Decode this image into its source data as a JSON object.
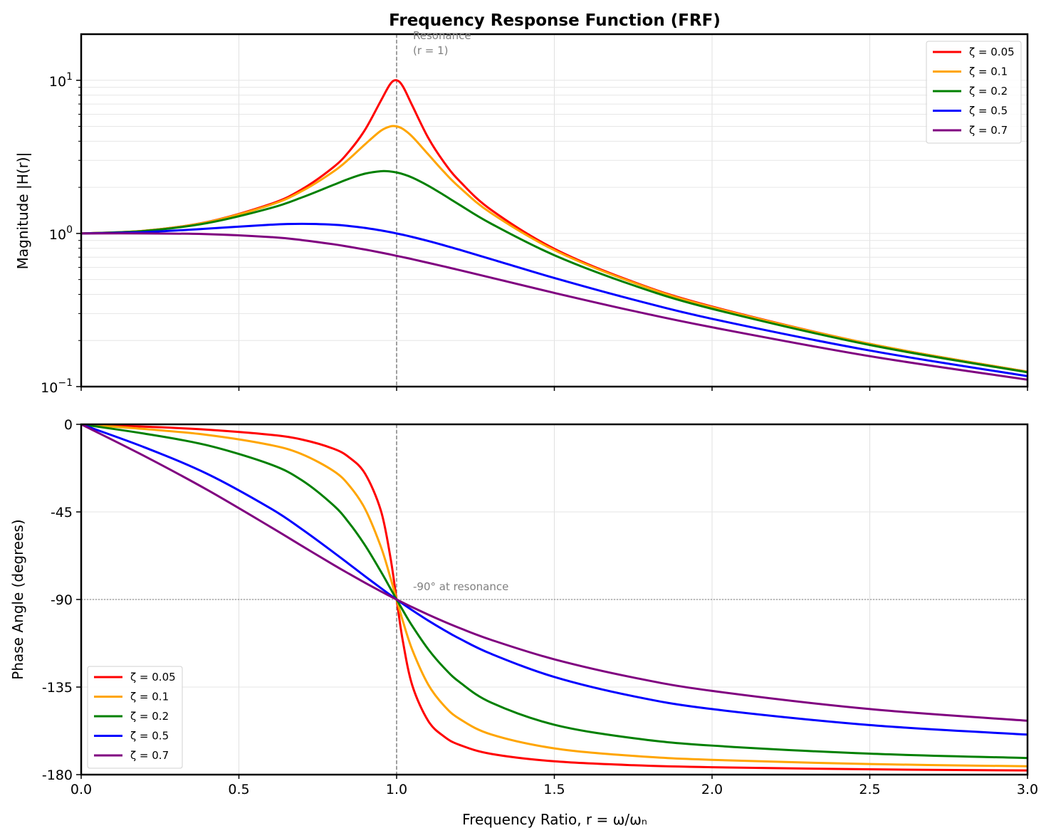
{
  "chart_data": [
    {
      "type": "line",
      "title": "Frequency Response Function (FRF)",
      "xlabel": "",
      "ylabel": "Magnitude |H(r)|",
      "xlim": [
        0,
        3
      ],
      "ylim": [
        0.1,
        20
      ],
      "yscale": "log",
      "grid": true,
      "legend": "top-right",
      "xticks": [
        "0.0",
        "0.5",
        "1.0",
        "1.5",
        "2.0",
        "2.5",
        "3.0"
      ],
      "yticks": [
        {
          "base": "10",
          "exp": "−1",
          "value": 0.1
        },
        {
          "base": "10",
          "exp": "0",
          "value": 1
        },
        {
          "base": "10",
          "exp": "1",
          "value": 10
        }
      ],
      "annotation": {
        "line1": "Resonance",
        "line2": "(r = 1)",
        "x": 1
      },
      "x": [
        0,
        0.2,
        0.4,
        0.6,
        0.7,
        0.8,
        0.85,
        0.9,
        0.95,
        0.98,
        1.0,
        1.02,
        1.05,
        1.1,
        1.15,
        1.2,
        1.3,
        1.5,
        1.75,
        2.0,
        2.5,
        3.0
      ],
      "series": [
        {
          "name": "ζ = 0.05",
          "color": "#ff0000",
          "values": [
            1,
            1.041,
            1.189,
            1.556,
            1.943,
            2.712,
            3.446,
            4.757,
            7.347,
            9.461,
            10.0,
            9.115,
            6.815,
            4.218,
            2.921,
            2.193,
            1.424,
            0.794,
            0.483,
            0.333,
            0.19,
            0.125
          ]
        },
        {
          "name": "ζ = 0.1",
          "color": "#ffa500",
          "values": [
            1,
            1.041,
            1.185,
            1.536,
            1.891,
            2.538,
            3.073,
            3.821,
            4.683,
            5.0,
            5.0,
            4.808,
            4.279,
            3.288,
            2.525,
            1.995,
            1.356,
            0.778,
            0.478,
            0.33,
            0.19,
            0.125
          ]
        },
        {
          "name": "ζ = 0.2",
          "color": "#008000",
          "values": [
            1,
            1.038,
            1.169,
            1.463,
            1.719,
            2.076,
            2.279,
            2.457,
            2.549,
            2.538,
            2.5,
            2.439,
            2.313,
            2.051,
            1.78,
            1.536,
            1.157,
            0.721,
            0.459,
            0.322,
            0.187,
            0.124
          ]
        },
        {
          "name": "ζ = 0.5",
          "color": "#0000ff",
          "values": [
            1,
            1.02,
            1.075,
            1.14,
            1.155,
            1.14,
            1.118,
            1.087,
            1.047,
            1.02,
            1.0,
            0.98,
            0.948,
            0.893,
            0.837,
            0.782,
            0.679,
            0.512,
            0.37,
            0.277,
            0.172,
            0.117
          ]
        },
        {
          "name": "ζ = 0.7",
          "color": "#800080",
          "values": [
            1,
            1.0,
            0.99,
            0.947,
            0.905,
            0.85,
            0.818,
            0.785,
            0.75,
            0.729,
            0.714,
            0.7,
            0.679,
            0.643,
            0.609,
            0.576,
            0.514,
            0.409,
            0.312,
            0.244,
            0.158,
            0.111
          ]
        }
      ]
    },
    {
      "type": "line",
      "title": "",
      "xlabel": "Frequency Ratio, r = ω/ωₙ",
      "ylabel": "Phase Angle (degrees)",
      "xlim": [
        0,
        3
      ],
      "ylim": [
        -180,
        0
      ],
      "grid": true,
      "legend": "bottom-left",
      "xticks": [
        "0.0",
        "0.5",
        "1.0",
        "1.5",
        "2.0",
        "2.5",
        "3.0"
      ],
      "yticks": [
        "0",
        "-45",
        "-90",
        "-135",
        "-180"
      ],
      "annotation": {
        "text": "-90° at resonance",
        "y": -90
      },
      "x": [
        0,
        0.2,
        0.4,
        0.6,
        0.7,
        0.8,
        0.85,
        0.9,
        0.95,
        0.98,
        1.0,
        1.02,
        1.05,
        1.1,
        1.15,
        1.2,
        1.3,
        1.5,
        1.75,
        2.0,
        2.5,
        3.0
      ],
      "series": [
        {
          "name": "ζ = 0.05",
          "color": "#ff0000",
          "values": [
            0,
            -1.19,
            -2.73,
            -5.36,
            -7.82,
            -12.53,
            -17.03,
            -25.35,
            -44.26,
            -68.0,
            -90,
            -111.6,
            -134.31,
            -152.35,
            -160.37,
            -164.74,
            -169.33,
            -173.16,
            -175.15,
            -176.19,
            -177.27,
            -177.85
          ]
        },
        {
          "name": "ζ = 0.1",
          "color": "#ffa500",
          "values": [
            0,
            -2.39,
            -5.44,
            -10.62,
            -15.35,
            -23.96,
            -31.49,
            -43.45,
            -62.84,
            -78.58,
            -90,
            -101.2,
            -116.01,
            -133.67,
            -144.5,
            -151.39,
            -159.36,
            -166.5,
            -170.37,
            -172.41,
            -174.56,
            -175.71
          ]
        },
        {
          "name": "ζ = 0.2",
          "color": "#008000",
          "values": [
            0,
            -4.76,
            -10.78,
            -20.56,
            -28.77,
            -41.63,
            -50.78,
            -62.18,
            -75.61,
            -84.23,
            -90,
            -95.65,
            -103.71,
            -115.51,
            -125.03,
            -132.51,
            -143.0,
            -154.36,
            -161.26,
            -165.07,
            -169.22,
            -171.47
          ]
        },
        {
          "name": "ζ = 0.5",
          "color": "#0000ff",
          "values": [
            0,
            -11.77,
            -25.46,
            -43.15,
            -53.92,
            -65.77,
            -71.92,
            -78.08,
            -84.14,
            -87.69,
            -90,
            -92.27,
            -95.58,
            -100.81,
            -105.66,
            -110.14,
            -117.96,
            -129.81,
            -139.69,
            -146.31,
            -154.54,
            -159.44
          ]
        },
        {
          "name": "ζ = 0.7",
          "color": "#800080",
          "values": [
            0,
            -16.26,
            -33.69,
            -52.7,
            -62.5,
            -72.18,
            -76.87,
            -81.43,
            -85.81,
            -88.35,
            -90,
            -91.62,
            -93.99,
            -97.77,
            -101.33,
            -104.68,
            -110.76,
            -120.76,
            -130.09,
            -136.97,
            -146.31,
            -152.3
          ]
        }
      ]
    }
  ]
}
